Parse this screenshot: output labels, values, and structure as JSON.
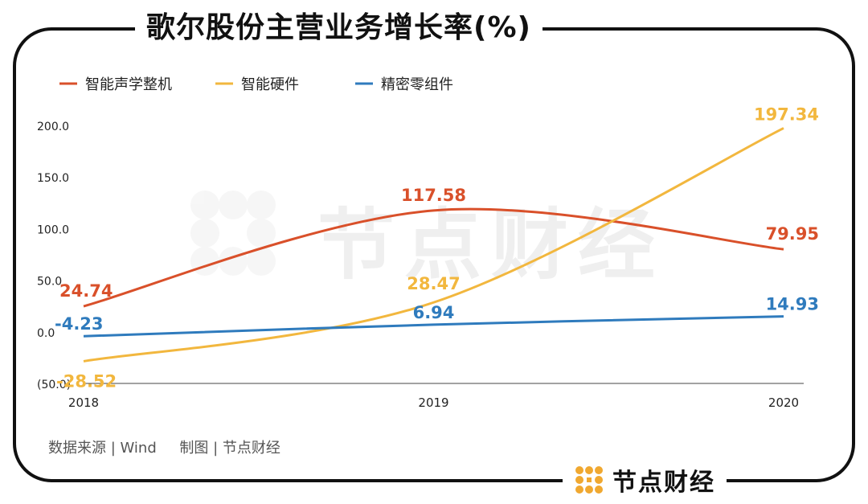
{
  "title": "歌尔股份主营业务增长率(%)",
  "source": "数据来源 | Wind     制图 | 节点财经",
  "brand": {
    "text": "节点财经",
    "watermark": "节点财经"
  },
  "colors": {
    "series_red": "#d9502a",
    "series_yellow": "#f2b73e",
    "series_blue": "#2f7bbd",
    "logo": "#f0a830"
  },
  "chart_data": {
    "type": "line",
    "categories": [
      "2018",
      "2019",
      "2020"
    ],
    "series": [
      {
        "name": "智能声学整机",
        "color": "#d9502a",
        "values": [
          24.74,
          117.58,
          79.95
        ],
        "labels": [
          "24.74",
          "117.58",
          "79.95"
        ]
      },
      {
        "name": "智能硬件",
        "color": "#f2b73e",
        "values": [
          -28.52,
          28.47,
          197.34
        ],
        "labels": [
          "-28.52",
          "28.47",
          "197.34"
        ]
      },
      {
        "name": "精密零组件",
        "color": "#2f7bbd",
        "values": [
          -4.23,
          6.94,
          14.93
        ],
        "labels": [
          "-4.23",
          "6.94",
          "14.93"
        ]
      }
    ],
    "yticks": [
      "(50.0)",
      "0.0",
      "50.0",
      "100.0",
      "150.0",
      "200.0"
    ],
    "ytick_values": [
      -50,
      0,
      50,
      100,
      150,
      200
    ],
    "ylim": [
      -50,
      200
    ],
    "legend_position": "top-left",
    "grid": false,
    "smooth": true
  }
}
